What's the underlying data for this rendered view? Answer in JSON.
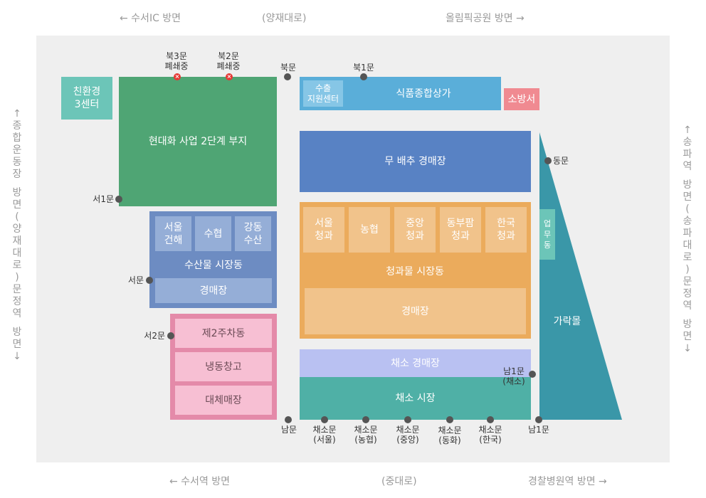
{
  "directions": {
    "top_left": "← 수서IC 방면",
    "top_center": "(양재대로)",
    "top_right": "올림픽공원 방면 →",
    "bottom_left": "← 수서역 방면",
    "bottom_center": "(중대로)",
    "bottom_right": "경찰병원역 방면 →",
    "left_vertical": [
      "↑",
      "종",
      "합",
      "운",
      "동",
      "장",
      "",
      "방",
      "면",
      "(",
      "양",
      "재",
      "대",
      "로",
      ")",
      "문",
      "정",
      "역",
      "",
      "방",
      "면",
      "↓"
    ],
    "right_vertical": [
      "↑",
      "송",
      "파",
      "역",
      "",
      "방",
      "면",
      "(",
      "송",
      "파",
      "대",
      "로",
      ")",
      "문",
      "정",
      "역",
      "",
      "방",
      "면",
      "↓"
    ]
  },
  "zones": {
    "eco_center": "친환경\n3센터",
    "modernization_site": "현대화 사업 2단계 부지",
    "seafood": {
      "stalls": [
        "서울\n건해",
        "수협",
        "강동\n수산"
      ],
      "building": "수산물 시장동",
      "auction": "경매장"
    },
    "parking": [
      "제2주차동",
      "냉동창고",
      "대체매장"
    ],
    "export_support": "수출\n지원센터",
    "food_mall": "식품종합상가",
    "fire_station": "소방서",
    "radish_cabbage": "무 배추 경매장",
    "fruit_veg": {
      "stalls": [
        "서울\n청과",
        "농협",
        "중앙\n청과",
        "동부팜\n청과",
        "한국\n청과"
      ],
      "building": "청과물 시장동",
      "auction": "경매장"
    },
    "veg_auction": "채소 경매장",
    "veg_market": "채소 시장",
    "garak_mall": "가락몰",
    "business": "업\n무\n동"
  },
  "gates": {
    "north3": "북3문\n폐쇄중",
    "north2": "북2문\n폐쇄중",
    "north": "북문",
    "north1": "북1문",
    "west1": "서1문",
    "west": "서문",
    "west2": "서2문",
    "east": "동문",
    "south1_veg": "남1문\n(채소)",
    "south": "남문",
    "veg_seoul": "채소문\n(서울)",
    "veg_nonghyup": "채소문\n(농협)",
    "veg_jungang": "채소문\n(중앙)",
    "veg_donghwa": "채소문\n(동화)",
    "veg_hanguk": "채소문\n(한국)",
    "south1": "남1문"
  },
  "colors": {
    "eco": "#6cc5b8",
    "green_site": "#4fa574",
    "seafood": "#6d8cc2",
    "seafood_inner": "#95aed7",
    "parking": "#e48aa9",
    "parking_inner": "#f7bfd3",
    "food_mall": "#5aaed9",
    "fire": "#f08a91",
    "radish": "#5882c4",
    "fruit": "#ebab5c",
    "fruit_inner": "#f1c38b",
    "veg_auction": "#b9c1f2",
    "veg_market": "#4fb0a6",
    "garak": "#3a97a8",
    "closed": "#e53935"
  }
}
